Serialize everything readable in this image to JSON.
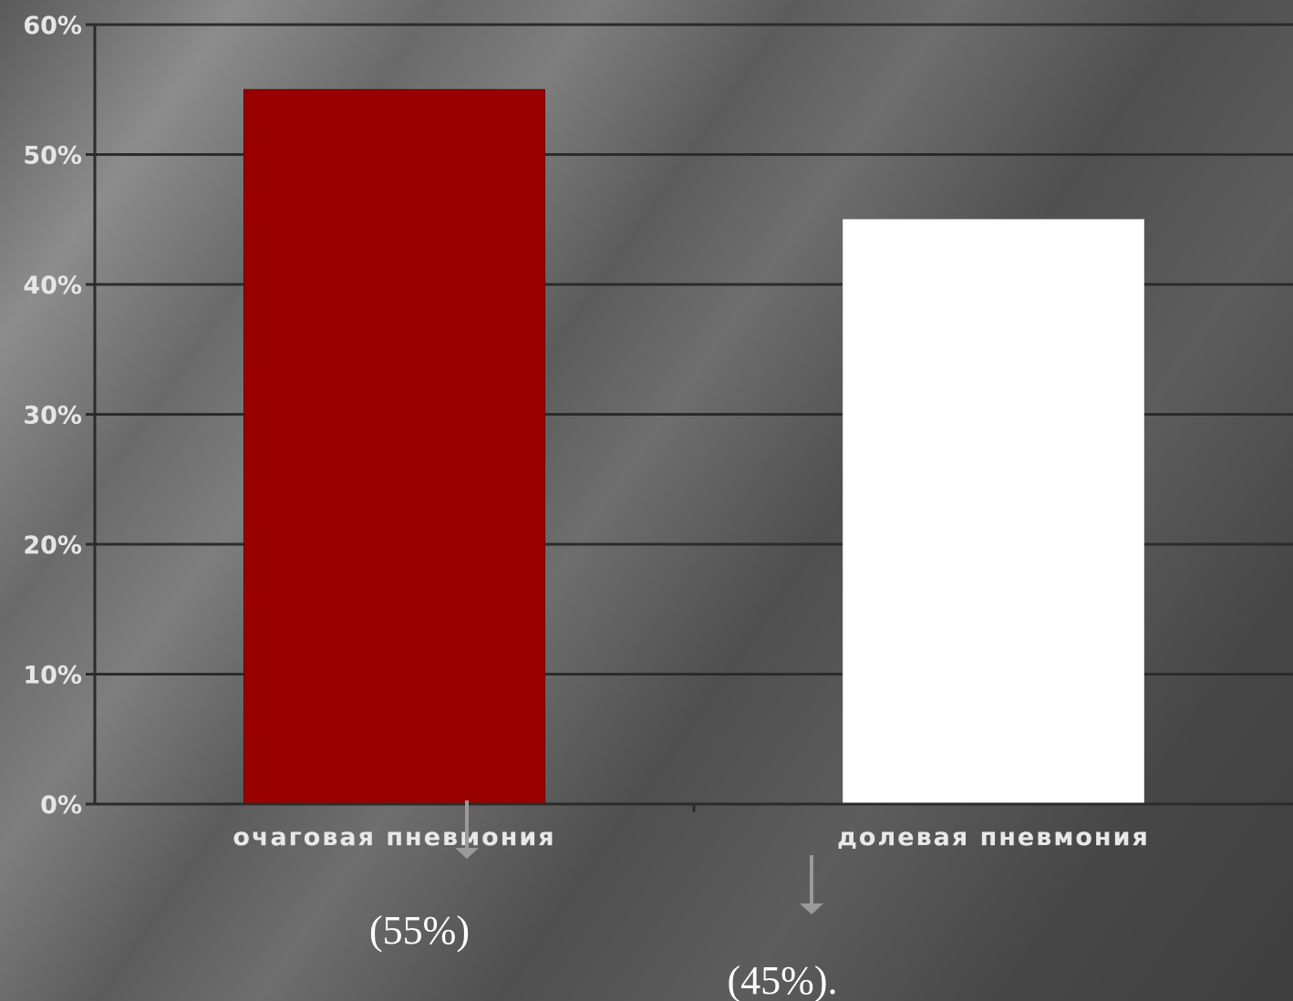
{
  "chart_data": {
    "type": "bar",
    "categories": [
      "очаговая пневмония",
      "долевая пневмония"
    ],
    "values": [
      55,
      45
    ],
    "colors": [
      "#990000",
      "#ffffff"
    ],
    "ylim": [
      0,
      60
    ],
    "yticks": [
      "0%",
      "10%",
      "20%",
      "30%",
      "40%",
      "50%",
      "60%"
    ],
    "data_labels": [
      "(55%)",
      "(45%)."
    ],
    "grid": true,
    "annotations": [
      "down-arrow-icon",
      "down-arrow-icon"
    ],
    "title": "",
    "xlabel": "",
    "ylabel": ""
  }
}
